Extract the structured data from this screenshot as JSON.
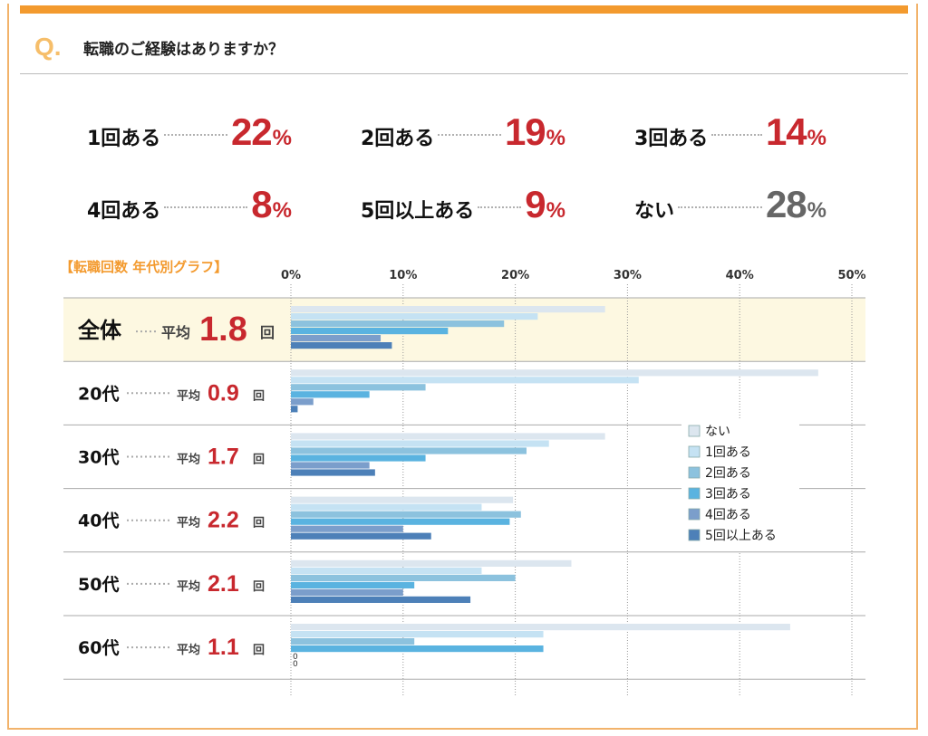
{
  "question": {
    "mark": "Q.",
    "text": "転職のご経験はありますか？"
  },
  "summary": [
    {
      "label": "1回ある",
      "value": "22",
      "unit": "%",
      "color": "#c8282e"
    },
    {
      "label": "2回ある",
      "value": "19",
      "unit": "%",
      "color": "#c8282e"
    },
    {
      "label": "3回ある",
      "value": "14",
      "unit": "%",
      "color": "#c8282e"
    },
    {
      "label": "4回ある",
      "value": "8",
      "unit": "%",
      "color": "#c8282e"
    },
    {
      "label": "5回以上ある",
      "value": "9",
      "unit": "%",
      "color": "#c8282e"
    },
    {
      "label": "ない",
      "value": "28",
      "unit": "%",
      "color": "#666666"
    }
  ],
  "chart_data": {
    "type": "bar",
    "orientation": "horizontal",
    "title": "【転職回数 年代別グラフ】",
    "xlim": [
      0,
      50
    ],
    "x_ticks": [
      "0%",
      "10%",
      "20%",
      "30%",
      "40%",
      "50%"
    ],
    "x_tick_values": [
      0,
      10,
      20,
      30,
      40,
      50
    ],
    "grid": true,
    "legend_position": "right",
    "avg_prefix": "平均",
    "avg_suffix": "回",
    "categories": [
      "全体",
      "20代",
      "30代",
      "40代",
      "50代",
      "60代"
    ],
    "averages": [
      "1.8",
      "0.9",
      "1.7",
      "2.2",
      "2.1",
      "1.1"
    ],
    "highlight_category": "全体",
    "highlight_color": "#fdf8e1",
    "series": [
      {
        "name": "ない",
        "color": "#dce6ef",
        "values": [
          28,
          47,
          28,
          19.8,
          25,
          44.5
        ]
      },
      {
        "name": "1回ある",
        "color": "#c5e2f3",
        "values": [
          22,
          31,
          23,
          17,
          17,
          22.5
        ]
      },
      {
        "name": "2回ある",
        "color": "#8cc2de",
        "values": [
          19,
          12,
          21,
          20.5,
          20,
          11
        ]
      },
      {
        "name": "3回ある",
        "color": "#5ab3e0",
        "values": [
          14,
          7,
          12,
          19.5,
          11,
          22.5
        ]
      },
      {
        "name": "4回ある",
        "color": "#7b9ecb",
        "values": [
          8,
          2,
          7,
          10,
          10,
          0
        ]
      },
      {
        "name": "5回以上ある",
        "color": "#4d80b8",
        "values": [
          9,
          0.6,
          7.5,
          12.5,
          16,
          0
        ]
      }
    ],
    "zero_label": "0"
  }
}
